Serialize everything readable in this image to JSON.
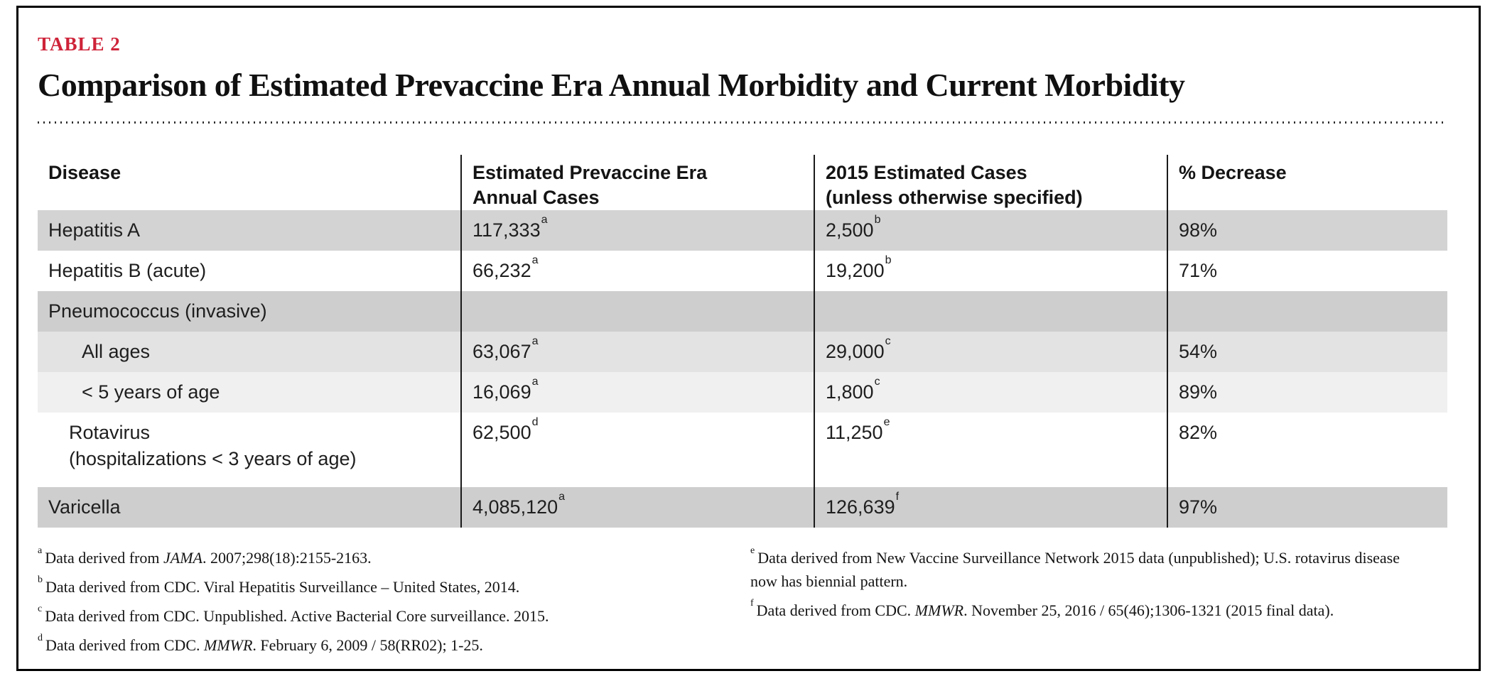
{
  "page": {
    "label": "TABLE 2",
    "title": "Comparison of Estimated Prevaccine Era Annual Morbidity and Current Morbidity",
    "accent_color": "#ce2339",
    "separator_color": "#1a1a1a"
  },
  "table": {
    "headers": [
      {
        "lines": [
          "Disease"
        ]
      },
      {
        "lines": [
          "Estimated Prevaccine Era",
          "Annual Cases"
        ]
      },
      {
        "lines": [
          "2015 Estimated Cases",
          "(unless otherwise specified)"
        ]
      },
      {
        "lines": [
          "% Decrease"
        ]
      }
    ],
    "rows": [
      {
        "disease": {
          "lines": [
            "Hepatitis A"
          ]
        },
        "indent": 0,
        "bg": "#d3d3d3",
        "prevaccine": {
          "value": "117,333",
          "note": "a"
        },
        "cases2015": {
          "value": "2,500",
          "note": "b"
        },
        "decrease": "98%"
      },
      {
        "disease": {
          "lines": [
            "Hepatitis B (acute)"
          ]
        },
        "indent": 0,
        "bg": "#ffffff",
        "prevaccine": {
          "value": "66,232",
          "note": "a"
        },
        "cases2015": {
          "value": "19,200",
          "note": "b"
        },
        "decrease": "71%"
      },
      {
        "disease": {
          "lines": [
            "Pneumococcus (invasive)"
          ]
        },
        "indent": 0,
        "bg": "#cecece",
        "prevaccine": null,
        "cases2015": null,
        "decrease": ""
      },
      {
        "disease": {
          "lines": [
            "All ages"
          ]
        },
        "indent": 1,
        "bg": "#e3e3e3",
        "prevaccine": {
          "value": "63,067",
          "note": "a"
        },
        "cases2015": {
          "value": "29,000",
          "note": "c"
        },
        "decrease": "54%"
      },
      {
        "disease": {
          "lines": [
            "< 5 years of age"
          ]
        },
        "indent": 1,
        "bg": "#f0f0f0",
        "prevaccine": {
          "value": "16,069",
          "note": "a"
        },
        "cases2015": {
          "value": "1,800",
          "note": "c"
        },
        "decrease": "89%"
      },
      {
        "disease": {
          "lines": [
            "Rotavirus",
            "(hospitalizations < 3 years of age)"
          ]
        },
        "indent": 2,
        "bg": "#ffffff",
        "tall": true,
        "prevaccine": {
          "value": "62,500",
          "note": "d"
        },
        "cases2015": {
          "value": "11,250",
          "note": "e"
        },
        "decrease": "82%"
      },
      {
        "disease": {
          "lines": [
            "Varicella"
          ]
        },
        "indent": 0,
        "bg": "#cecece",
        "prevaccine": {
          "value": "4,085,120",
          "note": "a"
        },
        "cases2015": {
          "value": "126,639",
          "note": "f"
        },
        "decrease": "97%"
      }
    ]
  },
  "footnotes": {
    "left": [
      {
        "note": "a",
        "segments": [
          {
            "text": "Data derived from "
          },
          {
            "text": "JAMA",
            "italic": true
          },
          {
            "text": ". 2007;298(18):2155-2163."
          }
        ]
      },
      {
        "note": "b",
        "segments": [
          {
            "text": "Data derived from CDC. Viral Hepatitis Surveillance – United States, 2014."
          }
        ]
      },
      {
        "note": "c",
        "segments": [
          {
            "text": "Data derived from CDC. Unpublished. Active Bacterial Core surveillance. 2015."
          }
        ]
      },
      {
        "note": "d",
        "segments": [
          {
            "text": "Data derived from CDC. "
          },
          {
            "text": "MMWR",
            "italic": true
          },
          {
            "text": ". February 6, 2009 / 58(RR02); 1-25."
          }
        ]
      }
    ],
    "right": [
      {
        "note": "e",
        "segments": [
          {
            "text": "Data derived from New Vaccine Surveillance Network 2015 data (unpublished); U.S. rotavirus disease now has biennial pattern."
          }
        ]
      },
      {
        "note": "f",
        "segments": [
          {
            "text": "Data derived from CDC. "
          },
          {
            "text": "MMWR",
            "italic": true
          },
          {
            "text": ". November 25, 2016 / 65(46);1306-1321 (2015 final data)."
          }
        ]
      }
    ]
  }
}
